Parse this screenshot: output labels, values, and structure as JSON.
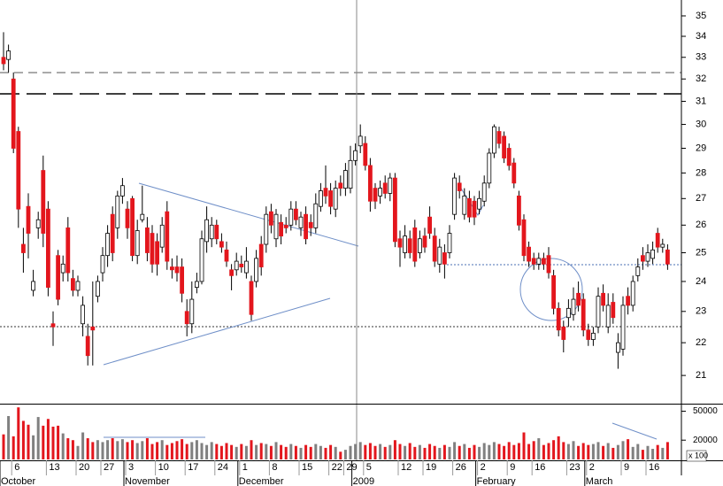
{
  "chart_data": {
    "type": "candlestick",
    "log_scale": true,
    "ylim": [
      20.2,
      35.8
    ],
    "yticks": [
      21,
      22,
      23,
      24,
      25,
      26,
      27,
      28,
      29,
      30,
      31,
      32,
      33,
      34,
      35
    ],
    "volume_ylim": [
      0,
      56000
    ],
    "volume_yticks": [
      20000,
      50000
    ],
    "volume_unit_label": "x 100",
    "up_color": "#ffffff",
    "down_color": "#e3161d",
    "volume_up_color": "#808080",
    "volume_down_color": "#e3161d",
    "categories": [
      null,
      null,
      "6",
      null,
      null,
      null,
      null,
      null,
      null,
      "13",
      null,
      null,
      null,
      null,
      null,
      "20",
      null,
      null,
      null,
      null,
      "27",
      null,
      null,
      null,
      null,
      "3",
      null,
      null,
      null,
      null,
      null,
      "10",
      null,
      null,
      null,
      null,
      null,
      "17",
      null,
      null,
      null,
      null,
      null,
      "24",
      null,
      null,
      null,
      null,
      "1",
      null,
      null,
      null,
      null,
      null,
      "8",
      null,
      null,
      null,
      null,
      null,
      "15",
      null,
      null,
      null,
      null,
      null,
      "22",
      null,
      null,
      "29",
      null,
      null,
      null,
      "5",
      null,
      null,
      null,
      null,
      null,
      null,
      "12",
      null,
      null,
      null,
      null,
      "19",
      null,
      null,
      null,
      null,
      null,
      "26",
      null,
      null,
      null,
      null,
      "2",
      null,
      null,
      null,
      null,
      null,
      "9",
      null,
      null,
      null,
      null,
      "16",
      null,
      null,
      null,
      null,
      null,
      null,
      "23",
      null,
      null,
      null,
      "2",
      null,
      null,
      null,
      null,
      null,
      null,
      "9",
      null,
      null,
      null,
      null,
      "16",
      null,
      null,
      null,
      null
    ],
    "month_labels": [
      "October",
      null,
      null,
      null,
      null,
      null,
      null,
      null,
      null,
      null,
      null,
      null,
      null,
      null,
      null,
      null,
      null,
      null,
      null,
      null,
      null,
      null,
      null,
      null,
      null,
      "November",
      null,
      null,
      null,
      null,
      null,
      null,
      null,
      null,
      null,
      null,
      null,
      null,
      null,
      null,
      null,
      null,
      null,
      null,
      null,
      null,
      null,
      null,
      "December",
      null,
      null,
      null,
      null,
      null,
      null,
      null,
      null,
      null,
      null,
      null,
      null,
      null,
      null,
      null,
      null,
      null,
      null,
      null,
      null,
      null,
      null,
      "2009",
      null,
      null,
      null,
      null,
      null,
      null,
      null,
      null,
      null,
      null,
      null,
      null,
      null,
      null,
      null,
      null,
      null,
      null,
      null,
      null,
      null,
      null,
      null,
      null,
      "February",
      null,
      null,
      null,
      null,
      null,
      null,
      null,
      null,
      null,
      null,
      null,
      null,
      null,
      null,
      null,
      null,
      null,
      null,
      null,
      null,
      null,
      "March",
      null,
      null,
      null,
      null,
      null,
      null,
      null,
      null,
      null,
      null,
      null,
      null,
      null,
      null,
      null,
      null
    ],
    "open": [
      33.0,
      32.9,
      32.0,
      29.7,
      25.3,
      26.7,
      23.7,
      25.9,
      28.1,
      26.6,
      22.6,
      24.9,
      24.3,
      25.9,
      24.1,
      23.7,
      22.6,
      22.2,
      22.5,
      23.5,
      24.3,
      24.9,
      26.4,
      25.9,
      27.1,
      26.6,
      27.0,
      24.9,
      26.2,
      25.9,
      25.7,
      25.4,
      25.2,
      26.5,
      24.5,
      24.5,
      24.5,
      23.0,
      22.6,
      23.8,
      24.0,
      25.4,
      25.5,
      26.0,
      25.4,
      25.1,
      24.4,
      24.4,
      24.6,
      24.3,
      24.0,
      24.0,
      25.3,
      25.3,
      26.5,
      25.5,
      26.1,
      26.0,
      26.0,
      26.6,
      25.9,
      26.4,
      26.1,
      25.9,
      26.7,
      27.4,
      27.3,
      26.6,
      27.6,
      27.4,
      27.4,
      28.5,
      29.1,
      29.2,
      28.3,
      27.4,
      27.1,
      27.6,
      27.2,
      27.8,
      25.5,
      25.0,
      25.5,
      25.9,
      25.0,
      25.6,
      26.3,
      25.6,
      24.6,
      25.0,
      25.0,
      26.4,
      27.6,
      26.4,
      27.0,
      26.9,
      26.6,
      26.9,
      27.6,
      28.8,
      29.7,
      29.5,
      29.0,
      28.4,
      27.1,
      26.2,
      25.2,
      24.8,
      24.6,
      24.8,
      24.9,
      24.2,
      23.1,
      22.5,
      22.8,
      22.9,
      23.6,
      23.4,
      22.4,
      22.1,
      22.5,
      23.6,
      22.5,
      23.3,
      21.7,
      21.8,
      23.5,
      23.2,
      24.2,
      24.9,
      24.7,
      24.8,
      25.7,
      25.2,
      25.1
    ],
    "high": [
      34.2,
      33.6,
      32.3,
      29.9,
      25.9,
      27.2,
      24.4,
      26.5,
      28.7,
      26.9,
      23.0,
      25.1,
      24.9,
      26.3,
      24.4,
      24.2,
      23.5,
      22.6,
      24.0,
      24.2,
      25.2,
      26.0,
      26.7,
      27.3,
      27.8,
      26.9,
      27.1,
      26.2,
      27.5,
      26.3,
      26.0,
      25.7,
      26.3,
      26.9,
      24.8,
      24.9,
      24.8,
      23.4,
      24.0,
      24.3,
      25.8,
      26.7,
      26.3,
      26.2,
      25.7,
      25.4,
      24.6,
      25.0,
      24.9,
      25.2,
      24.2,
      25.1,
      25.6,
      26.7,
      26.8,
      26.6,
      26.4,
      26.3,
      26.9,
      26.9,
      26.5,
      26.7,
      26.4,
      27.2,
      27.6,
      28.3,
      27.6,
      27.7,
      27.9,
      28.4,
      29.1,
      29.2,
      30.0,
      29.5,
      28.6,
      27.6,
      27.7,
      27.9,
      28.0,
      28.0,
      25.8,
      26.0,
      25.8,
      26.2,
      25.8,
      25.9,
      26.7,
      25.9,
      25.5,
      25.3,
      26.0,
      28.0,
      27.9,
      27.4,
      27.3,
      27.1,
      27.3,
      27.9,
      29.0,
      30.0,
      29.9,
      29.7,
      29.2,
      28.6,
      27.3,
      26.4,
      25.4,
      25.0,
      25.0,
      25.0,
      25.2,
      24.4,
      23.3,
      22.7,
      23.4,
      23.8,
      24.0,
      23.6,
      22.6,
      22.5,
      23.8,
      23.9,
      23.6,
      23.6,
      22.3,
      23.5,
      23.8,
      24.2,
      24.8,
      25.2,
      25.3,
      25.4,
      25.9,
      25.5,
      25.3
    ],
    "low": [
      32.4,
      32.3,
      28.8,
      25.9,
      24.3,
      24.8,
      23.5,
      25.5,
      25.2,
      23.5,
      21.9,
      23.2,
      24.0,
      24.0,
      23.5,
      23.5,
      22.2,
      21.3,
      21.3,
      23.3,
      24.0,
      24.5,
      24.7,
      25.5,
      26.8,
      25.5,
      24.7,
      24.6,
      26.1,
      24.7,
      24.3,
      24.2,
      25.0,
      24.4,
      24.1,
      24.0,
      23.3,
      22.2,
      22.3,
      23.6,
      23.9,
      25.0,
      25.2,
      25.3,
      25.0,
      24.5,
      23.7,
      24.2,
      24.3,
      24.1,
      22.7,
      23.8,
      24.2,
      25.0,
      25.7,
      25.2,
      25.3,
      25.7,
      25.8,
      26.0,
      25.6,
      25.3,
      25.6,
      25.7,
      26.5,
      26.8,
      26.4,
      26.3,
      27.1,
      27.1,
      27.2,
      28.3,
      28.8,
      28.1,
      26.5,
      26.6,
      26.8,
      27.0,
      26.9,
      25.2,
      24.5,
      24.8,
      24.8,
      24.5,
      24.8,
      25.0,
      25.5,
      24.5,
      24.3,
      24.1,
      24.8,
      26.2,
      27.0,
      26.2,
      26.1,
      26.0,
      26.4,
      26.7,
      27.4,
      28.6,
      29.0,
      28.4,
      28.1,
      27.4,
      25.8,
      24.7,
      24.5,
      24.4,
      24.4,
      24.4,
      24.1,
      22.9,
      22.2,
      21.7,
      22.5,
      22.7,
      23.0,
      22.2,
      21.9,
      21.9,
      22.3,
      23.0,
      22.3,
      22.6,
      21.2,
      21.6,
      22.9,
      23.0,
      24.0,
      24.4,
      24.5,
      24.6,
      25.0,
      25.0,
      24.4
    ],
    "close": [
      32.7,
      33.3,
      29.0,
      26.6,
      25.0,
      25.7,
      24.0,
      26.2,
      25.7,
      23.8,
      22.5,
      23.4,
      24.6,
      24.3,
      23.7,
      24.0,
      23.2,
      21.6,
      22.4,
      24.0,
      24.9,
      25.7,
      25.0,
      27.1,
      27.5,
      25.9,
      24.9,
      25.8,
      26.4,
      25.0,
      24.6,
      24.6,
      26.0,
      24.7,
      24.4,
      24.3,
      23.6,
      22.6,
      23.4,
      24.0,
      25.5,
      26.2,
      26.0,
      25.5,
      25.2,
      24.7,
      24.2,
      24.7,
      24.5,
      24.7,
      22.9,
      24.8,
      24.5,
      26.4,
      26.0,
      26.4,
      25.6,
      25.9,
      26.6,
      26.2,
      26.3,
      25.5,
      25.9,
      26.8,
      27.3,
      27.1,
      26.7,
      27.4,
      27.4,
      28.1,
      28.5,
      28.9,
      29.5,
      28.3,
      26.9,
      26.9,
      27.4,
      27.2,
      27.8,
      25.4,
      25.2,
      25.6,
      25.0,
      24.7,
      25.5,
      25.2,
      25.7,
      24.7,
      25.2,
      24.6,
      25.7,
      27.8,
      27.3,
      27.1,
      26.3,
      26.3,
      27.0,
      27.6,
      28.8,
      29.9,
      29.2,
      28.6,
      28.3,
      27.6,
      26.0,
      24.9,
      24.7,
      24.6,
      24.8,
      24.6,
      24.3,
      23.1,
      22.4,
      22.1,
      23.1,
      23.4,
      23.2,
      22.4,
      22.1,
      22.3,
      23.5,
      23.2,
      23.2,
      22.8,
      22.0,
      23.2,
      23.2,
      24.0,
      24.5,
      24.7,
      25.0,
      25.1,
      25.2,
      25.3,
      24.6
    ],
    "volume": [
      26000,
      45000,
      24000,
      54000,
      40000,
      36000,
      25000,
      44000,
      35000,
      42000,
      34000,
      35000,
      27000,
      22000,
      20000,
      14000,
      28000,
      22000,
      18000,
      20000,
      18000,
      20000,
      22000,
      19000,
      21000,
      18000,
      20000,
      17000,
      19000,
      22000,
      16000,
      18000,
      20000,
      15000,
      17000,
      19000,
      21000,
      16000,
      18000,
      20000,
      17000,
      15000,
      18000,
      16000,
      14000,
      17000,
      15000,
      13000,
      16000,
      14000,
      20000,
      15000,
      17000,
      16000,
      14000,
      18000,
      15000,
      13000,
      16000,
      14000,
      12000,
      15000,
      13000,
      16000,
      14000,
      12000,
      15000,
      13000,
      8000,
      10000,
      14000,
      16000,
      18000,
      15000,
      17000,
      14000,
      16000,
      13000,
      15000,
      20000,
      16000,
      14000,
      17000,
      13000,
      15000,
      12000,
      16000,
      14000,
      12000,
      15000,
      13000,
      18000,
      14000,
      16000,
      12000,
      15000,
      13000,
      17000,
      15000,
      18000,
      16000,
      14000,
      18000,
      15000,
      17000,
      28000,
      16000,
      19000,
      22000,
      15000,
      17000,
      20000,
      24000,
      18000,
      16000,
      19000,
      14000,
      17000,
      15000,
      16000,
      18000,
      14000,
      17000,
      12000,
      15000,
      19000,
      21000,
      13000,
      16000,
      10000,
      14000,
      11000,
      15000,
      12000,
      18000
    ]
  }
}
